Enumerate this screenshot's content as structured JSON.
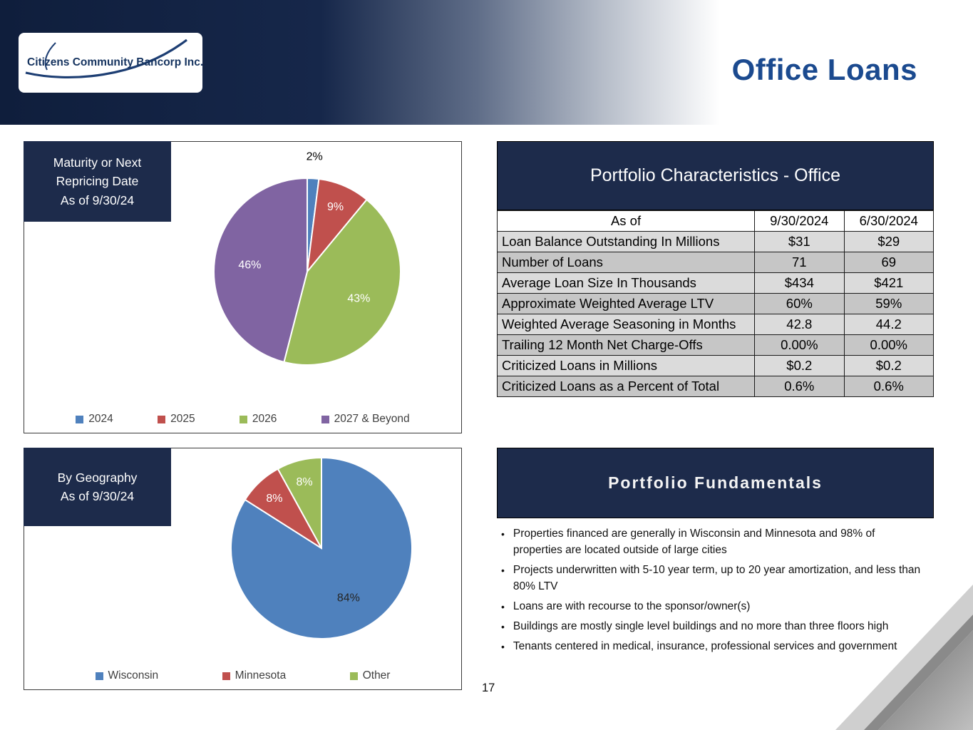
{
  "slide": {
    "logo_text": "Citizens Community Bancorp Inc.",
    "title": "Office Loans",
    "page_number": "17"
  },
  "maturity_panel": {
    "title": "Maturity or Next\nRepricing Date\nAs of 9/30/24"
  },
  "geography_panel": {
    "title": "By Geography\nAs of 9/30/24"
  },
  "characteristics_table": {
    "header": "Portfolio Characteristics - Office",
    "columns": [
      "As of",
      "9/30/2024",
      "6/30/2024"
    ],
    "rows": [
      [
        "Loan Balance Outstanding In Millions",
        "$31",
        "$29"
      ],
      [
        "Number of Loans",
        "71",
        "69"
      ],
      [
        "Average Loan Size In Thousands",
        "$434",
        "$421"
      ],
      [
        "Approximate Weighted Average LTV",
        "60%",
        "59%"
      ],
      [
        "Weighted Average Seasoning in Months",
        "42.8",
        "44.2"
      ],
      [
        "Trailing 12 Month Net Charge-Offs",
        "0.00%",
        "0.00%"
      ],
      [
        "Criticized Loans in Millions",
        "$0.2",
        "$0.2"
      ],
      [
        "Criticized Loans as a Percent of Total",
        "0.6%",
        "0.6%"
      ]
    ]
  },
  "fundamentals": {
    "header": "Portfolio Fundamentals",
    "bullets": [
      "Properties financed are generally in Wisconsin and Minnesota and 98% of properties are located outside of large cities",
      "Projects underwritten with 5-10 year term, up to 20 year amortization, and less than 80% LTV",
      "Loans are with recourse to the sponsor/owner(s)",
      "Buildings are mostly single level buildings and no more than three floors high",
      "Tenants centered in medical, insurance, professional services and government"
    ]
  },
  "chart_data": [
    {
      "type": "pie",
      "title": "Maturity or Next Repricing Date As of 9/30/24",
      "labels": [
        "2024",
        "2025",
        "2026",
        "2027 & Beyond"
      ],
      "values": [
        2,
        9,
        43,
        46
      ],
      "data_labels": [
        "2%",
        "9%",
        "43%",
        "46%"
      ],
      "colors": [
        "#4F81BD",
        "#C0504D",
        "#9BBB59",
        "#8064A2"
      ],
      "label_colors": [
        "#000000",
        "#FFFFFF",
        "#FFFFFF",
        "#FFFFFF"
      ],
      "legend_position": "bottom"
    },
    {
      "type": "pie",
      "title": "By Geography As of 9/30/24",
      "labels": [
        "Wisconsin",
        "Minnesota",
        "Other"
      ],
      "values": [
        84,
        8,
        8
      ],
      "data_labels": [
        "84%",
        "8%",
        "8%"
      ],
      "colors": [
        "#4F81BD",
        "#C0504D",
        "#9BBB59"
      ],
      "label_colors": [
        "#262626",
        "#FFFFFF",
        "#FFFFFF"
      ],
      "legend_position": "bottom"
    }
  ],
  "colors": {
    "navy": "#1D2B4B",
    "title_blue": "#1B4A8F",
    "table_row_light": "#DBDBDB",
    "table_row_dark": "#C6C6C6"
  }
}
